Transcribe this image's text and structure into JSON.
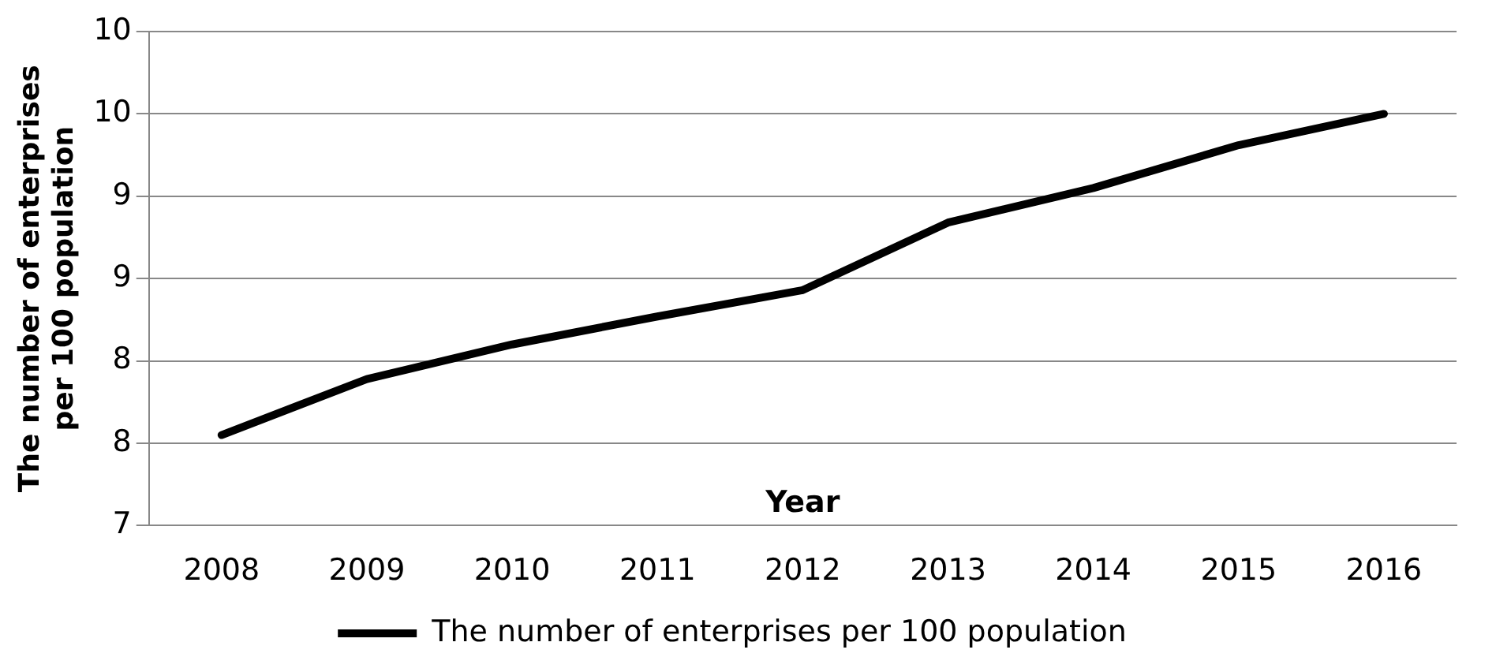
{
  "chart_data": {
    "type": "line",
    "xlabel": "Year",
    "ylabel": "The number of enterprises per 100 population",
    "categories": [
      "2008",
      "2009",
      "2010",
      "2011",
      "2012",
      "2013",
      "2014",
      "2015",
      "2016"
    ],
    "series": [
      {
        "name": "The number of enterprises per 100 population",
        "color": "#000000",
        "values": [
          7.55,
          7.89,
          8.1,
          8.27,
          8.43,
          8.84,
          9.05,
          9.31,
          9.5
        ]
      }
    ],
    "ylim": [
      7,
      10
    ],
    "yticks": [
      {
        "value": 7,
        "label": "7"
      },
      {
        "value": 7.5,
        "label": "8"
      },
      {
        "value": 8,
        "label": "8"
      },
      {
        "value": 8.5,
        "label": "9"
      },
      {
        "value": 9,
        "label": "9"
      },
      {
        "value": 9.5,
        "label": "10"
      },
      {
        "value": 10,
        "label": "10"
      }
    ],
    "grid": "y",
    "legend": "bottom",
    "marker": "none",
    "line_style": "solid"
  }
}
